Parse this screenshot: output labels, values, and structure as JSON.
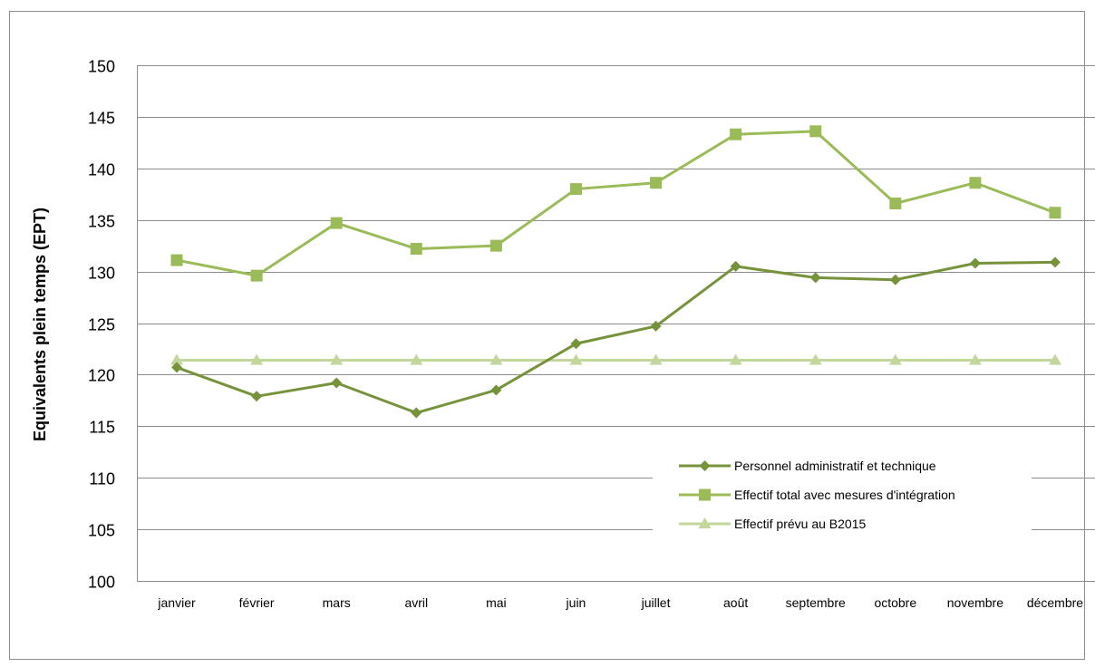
{
  "chart_data": {
    "type": "line",
    "title": "",
    "xlabel": "",
    "ylabel": "Equivalents plein temps (EPT)",
    "categories": [
      "janvier",
      "février",
      "mars",
      "avril",
      "mai",
      "juin",
      "juillet",
      "août",
      "septembre",
      "octobre",
      "novembre",
      "décembre"
    ],
    "ylim": [
      100,
      150
    ],
    "yticks": [
      "100",
      "105",
      "110",
      "115",
      "120",
      "125",
      "130",
      "135",
      "140",
      "145",
      "150"
    ],
    "grid": true,
    "legend_position": "bottom-right",
    "series": [
      {
        "name": "Personnel administratif et technique",
        "marker": "diamond",
        "color": "#76933c",
        "values": [
          120.7,
          117.9,
          119.2,
          116.3,
          118.5,
          123.0,
          124.7,
          130.5,
          129.4,
          129.2,
          130.8,
          130.9
        ]
      },
      {
        "name": "Effectif total avec mesures d'intégration",
        "marker": "square",
        "color": "#9bbb59",
        "values": [
          131.1,
          129.6,
          134.7,
          132.2,
          132.5,
          138.0,
          138.6,
          143.3,
          143.6,
          136.6,
          138.6,
          135.7
        ]
      },
      {
        "name": "Effectif prévu au B2015",
        "marker": "triangle",
        "color": "#c3d69b",
        "values": [
          121.4,
          121.4,
          121.4,
          121.4,
          121.4,
          121.4,
          121.4,
          121.4,
          121.4,
          121.4,
          121.4,
          121.4
        ]
      }
    ]
  }
}
